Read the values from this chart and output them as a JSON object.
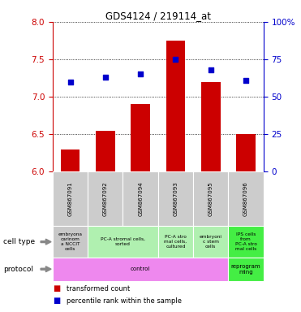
{
  "title": "GDS4124 / 219114_at",
  "samples": [
    "GSM867091",
    "GSM867092",
    "GSM867094",
    "GSM867093",
    "GSM867095",
    "GSM867096"
  ],
  "bar_values": [
    6.3,
    6.55,
    6.9,
    7.75,
    7.2,
    6.5
  ],
  "dot_values": [
    60,
    63,
    65,
    75,
    68,
    61
  ],
  "ylim_left": [
    6,
    8
  ],
  "ylim_right": [
    0,
    100
  ],
  "yticks_left": [
    6,
    6.5,
    7,
    7.5,
    8
  ],
  "yticks_right": [
    0,
    25,
    50,
    75,
    100
  ],
  "ytick_labels_right": [
    "0",
    "25",
    "50",
    "75",
    "100%"
  ],
  "bar_color": "#cc0000",
  "dot_color": "#0000cc",
  "cell_type_data": [
    {
      "span": [
        0,
        1
      ],
      "color": "#c8c8c8",
      "text": "embryona\ncarinom\na NCCIT\ncells"
    },
    {
      "span": [
        1,
        3
      ],
      "color": "#b0f0b0",
      "text": "PC-A stromal cells,\nsorted"
    },
    {
      "span": [
        3,
        4
      ],
      "color": "#b0f0b0",
      "text": "PC-A stro\nmal cells,\ncultured"
    },
    {
      "span": [
        4,
        5
      ],
      "color": "#b0f0b0",
      "text": "embryoni\nc stem\ncells"
    },
    {
      "span": [
        5,
        6
      ],
      "color": "#44ee44",
      "text": "IPS cells\nfrom\nPC-A stro\nmal cells"
    }
  ],
  "protocol_data": [
    {
      "span": [
        0,
        5
      ],
      "color": "#ee88ee",
      "text": "control"
    },
    {
      "span": [
        5,
        6
      ],
      "color": "#44ee44",
      "text": "reprogram\nming"
    }
  ],
  "background_color": "#ffffff"
}
